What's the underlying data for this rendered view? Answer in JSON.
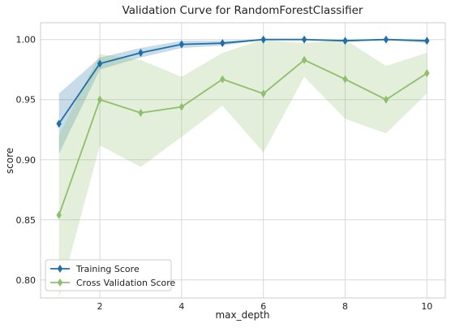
{
  "chart_data": {
    "type": "line",
    "title": "Validation Curve for RandomForestClassifier",
    "xlabel": "max_depth",
    "ylabel": "score",
    "x": [
      1,
      2,
      3,
      4,
      5,
      6,
      7,
      8,
      9,
      10
    ],
    "xticks": [
      2,
      4,
      6,
      8,
      10
    ],
    "xlim": [
      0.55,
      10.45
    ],
    "yticks": [
      0.8,
      0.85,
      0.9,
      0.95,
      1.0
    ],
    "ytick_labels": [
      "0.80",
      "0.85",
      "0.90",
      "0.95",
      "1.00"
    ],
    "ylim": [
      0.785,
      1.014
    ],
    "grid": true,
    "legend_position": "lower-left",
    "series": [
      {
        "name": "Training Score",
        "color": "#1f6fa8",
        "marker": "diamond",
        "values": [
          0.93,
          0.98,
          0.989,
          0.996,
          0.997,
          1.0,
          1.0,
          0.999,
          1.0,
          0.999
        ],
        "band_lower": [
          0.905,
          0.975,
          0.985,
          0.993,
          0.995,
          1.0,
          1.0,
          0.998,
          1.0,
          0.997
        ],
        "band_upper": [
          0.955,
          0.985,
          0.993,
          0.999,
          0.999,
          1.0,
          1.0,
          1.0,
          1.0,
          1.0
        ]
      },
      {
        "name": "Cross Validation Score",
        "color": "#8fbe6d",
        "marker": "diamond",
        "values": [
          0.854,
          0.95,
          0.939,
          0.944,
          0.967,
          0.955,
          0.983,
          0.967,
          0.95,
          0.972
        ],
        "band_lower": [
          0.785,
          0.912,
          0.894,
          0.919,
          0.945,
          0.906,
          0.969,
          0.934,
          0.922,
          0.955
        ],
        "band_upper": [
          0.92,
          0.988,
          0.983,
          0.969,
          0.989,
          1.0,
          0.997,
          1.0,
          0.978,
          0.989
        ]
      }
    ]
  }
}
